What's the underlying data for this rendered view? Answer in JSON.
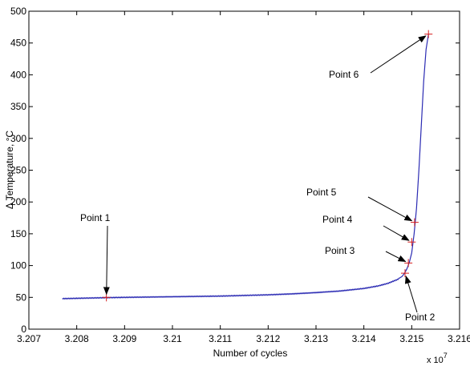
{
  "chart_data": {
    "type": "line",
    "title": "",
    "xlabel": "Number of cycles",
    "ylabel": "Δ Temperature, °C",
    "x_exponent_label": "x 10",
    "x_exponent_power": "7",
    "xlim": [
      3.207,
      3.216
    ],
    "ylim": [
      0,
      500
    ],
    "x_ticks": [
      3.207,
      3.208,
      3.209,
      3.21,
      3.211,
      3.212,
      3.213,
      3.214,
      3.215,
      3.216
    ],
    "x_tick_labels": [
      "3.207",
      "3.208",
      "3.209",
      "3.21",
      "3.211",
      "3.212",
      "3.213",
      "3.214",
      "3.215",
      "3.216"
    ],
    "y_ticks": [
      0,
      50,
      100,
      150,
      200,
      250,
      300,
      350,
      400,
      450,
      500
    ],
    "y_tick_labels": [
      "0",
      "50",
      "100",
      "150",
      "200",
      "250",
      "300",
      "350",
      "400",
      "450",
      "500"
    ],
    "grid": false,
    "line_color": "#2b2bb3",
    "marker_color": "#d62020",
    "series": [
      {
        "x": [
          3.2077,
          3.208,
          3.2083,
          3.2086,
          3.209,
          3.2095,
          3.21,
          3.2105,
          3.211,
          3.2115,
          3.212,
          3.2125,
          3.213,
          3.2135,
          3.214,
          3.2143,
          3.2145,
          3.2147,
          3.2148,
          3.21485,
          3.2149,
          3.21495,
          3.215,
          3.21505,
          3.2151,
          3.21515,
          3.2152,
          3.21525,
          3.2153,
          3.21535
        ],
        "y": [
          48,
          48.5,
          49,
          49.5,
          50,
          50.5,
          51,
          51.5,
          52,
          53,
          54,
          55.5,
          57.5,
          60,
          64,
          68,
          72,
          78,
          83,
          88,
          95,
          105,
          120,
          150,
          190,
          250,
          320,
          390,
          440,
          464
        ]
      }
    ],
    "points": [
      {
        "label": "Point 1",
        "x": 3.20862,
        "y": 50
      },
      {
        "label": "Point 2",
        "x": 3.21486,
        "y": 88
      },
      {
        "label": "Point 3",
        "x": 3.21493,
        "y": 104
      },
      {
        "label": "Point 4",
        "x": 3.215,
        "y": 137
      },
      {
        "label": "Point 5",
        "x": 3.21506,
        "y": 168
      },
      {
        "label": "Point 6",
        "x": 3.21535,
        "y": 464
      }
    ]
  }
}
